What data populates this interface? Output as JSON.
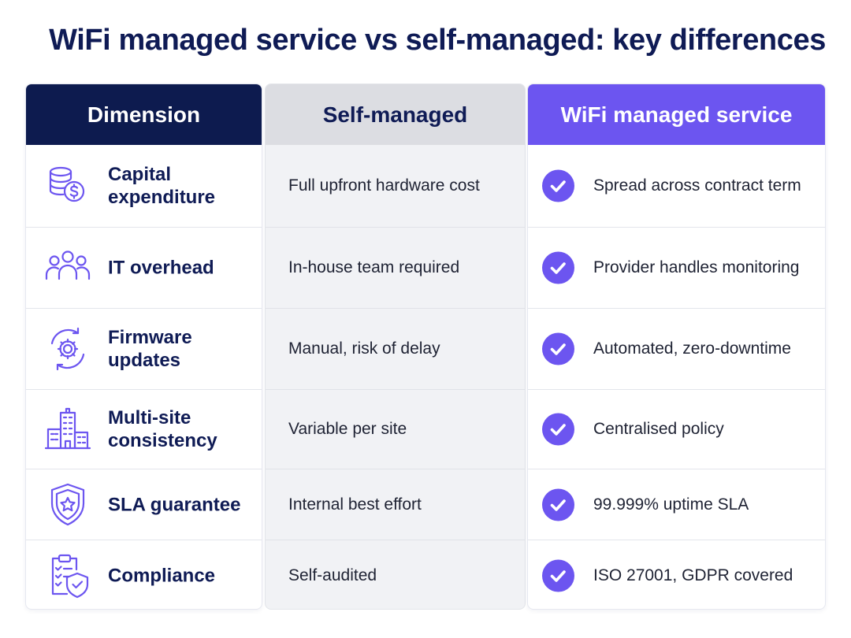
{
  "title": "WiFi managed service vs self-managed: key differences",
  "columns": {
    "dimension": "Dimension",
    "self": "Self-managed",
    "managed": "WiFi managed service"
  },
  "rows": [
    {
      "icon": "coins-dollar-icon",
      "dimension": "Capital expenditure",
      "self": "Full upfront hardware cost",
      "managed": "Spread across contract term"
    },
    {
      "icon": "people-group-icon",
      "dimension": "IT overhead",
      "self": "In-house team required",
      "managed": "Provider handles monitoring"
    },
    {
      "icon": "gear-refresh-icon",
      "dimension": "Firmware updates",
      "self": "Manual, risk of delay",
      "managed": "Automated, zero-downtime"
    },
    {
      "icon": "buildings-icon",
      "dimension": "Multi-site consistency",
      "self": "Variable per site",
      "managed": "Centralised policy"
    },
    {
      "icon": "shield-star-icon",
      "dimension": "SLA guarantee",
      "self": "Internal best effort",
      "managed": "99.999% uptime SLA"
    },
    {
      "icon": "clipboard-shield-icon",
      "dimension": "Compliance",
      "self": "Self-audited",
      "managed": "ISO 27001, GDPR covered"
    }
  ],
  "colors": {
    "navy": "#0d1b4f",
    "accent": "#6c55f0",
    "grey_header": "#dcdde2",
    "grey_column": "#f1f2f5"
  }
}
